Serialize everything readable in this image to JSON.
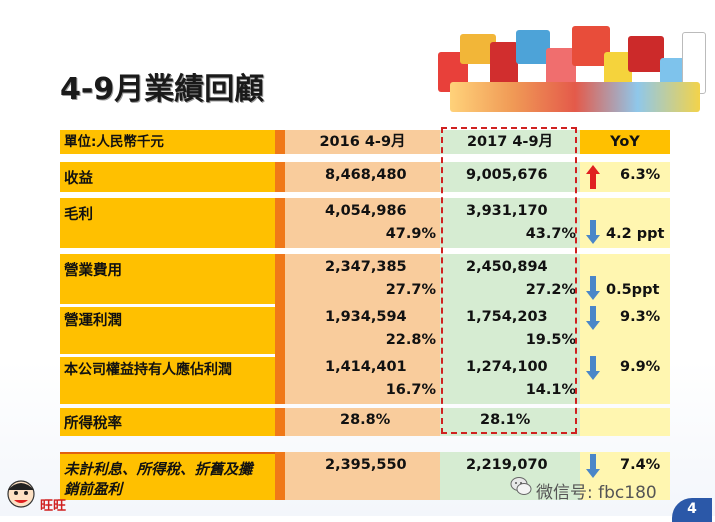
{
  "title": "4-9月業績回顧",
  "header": {
    "unit": "單位:人民幣千元",
    "col1": "2016 4-9月",
    "col2": "2017 4-9月",
    "col3": "YoY"
  },
  "rows": [
    {
      "label": "收益",
      "v2016": "8,468,480",
      "v2017": "9,005,676",
      "yoy": "6.3%",
      "dir": "up"
    },
    {
      "label": "毛利",
      "v2016": "4,054,986",
      "v2017": "3,931,170",
      "p2016": "47.9%",
      "p2017": "43.7%",
      "yoy": "4.2 ppt",
      "dir": "down"
    },
    {
      "label": "營業費用",
      "v2016": "2,347,385",
      "v2017": "2,450,894",
      "p2016": "27.7%",
      "p2017": "27.2%",
      "yoy": "0.5ppt",
      "dir": "down"
    },
    {
      "label": "營運利潤",
      "v2016": "1,934,594",
      "v2017": "1,754,203",
      "p2016": "22.8%",
      "p2017": "19.5%",
      "yoy": "9.3%",
      "dir": "down"
    },
    {
      "label": "本公司權益持有人應佔利潤",
      "v2016": "1,414,401",
      "v2017": "1,274,100",
      "p2016": "16.7%",
      "p2017": "14.1%",
      "yoy": "9.9%",
      "dir": "down"
    },
    {
      "label": "所得稅率",
      "v2016": "28.8%",
      "v2017": "28.1%"
    }
  ],
  "ebitda": {
    "label_line1": "未計利息、所得稅、折舊及攤",
    "label_line2": "銷前盈利",
    "v2016": "2,395,550",
    "v2017": "2,219,070",
    "yoy": "7.4%",
    "dir": "down"
  },
  "watermark": "微信号: fbc180",
  "logo_text": "旺旺",
  "page_number": "4",
  "colors": {
    "label_bg": "#ffc000",
    "sep": "#f07818",
    "col2016_bg": "#f9cc9c",
    "col2017_bg": "#d6ecd2",
    "yoy_bg": "#fff6b0",
    "arrow_up": "#e02020",
    "arrow_down": "#4a86c8",
    "highlight_border": "#d02020"
  }
}
